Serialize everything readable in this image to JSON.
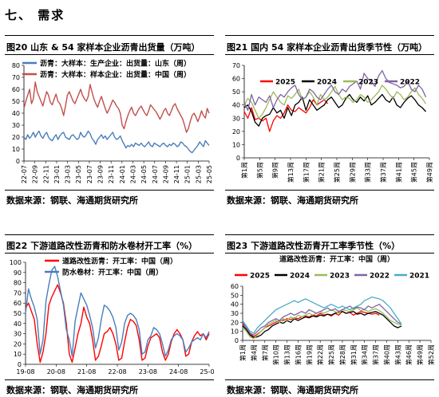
{
  "section_title": "七、  需求",
  "panels": [
    {
      "title": "图20  山东 & 54 家样本企业沥青出货量（万吨）",
      "source": "数据来源：钢联、海通期货研究所"
    },
    {
      "title": "图21  国内 54 家样本企业沥青出货季节性（万吨）",
      "source": "数据来源：钢联、海通期货研究所"
    },
    {
      "title": "图22  下游道路改性沥青和防水卷材开工率（%）",
      "source": "数据来源：钢联、海通期货研究所"
    },
    {
      "title": "图23  下游道路改性沥青开工率季节性（%）",
      "source": "数据来源：钢联、海通期货研究所"
    }
  ],
  "chart_data": [
    {
      "type": "line",
      "legend": [
        "沥青：大样本：生产企业：出货量：山东（周）",
        "沥青：大样本：样本企业：出货量：中国（周）"
      ],
      "colors": [
        "#4a7ebb",
        "#c0504d"
      ],
      "x_tick_labels": [
        "22-07",
        "22-09",
        "22-11",
        "23-01",
        "23-03",
        "23-05",
        "23-07",
        "23-09",
        "23-11",
        "24-01",
        "24-03",
        "24-05",
        "24-07",
        "24-09",
        "24-11",
        "25-01",
        "25-03",
        "25-05"
      ],
      "ylim": [
        0,
        80
      ],
      "y_ticks": [
        0,
        10,
        20,
        30,
        40,
        50,
        60,
        70,
        80
      ],
      "series": [
        {
          "name": "沥青：大样本：生产企业：出货量：山东（周）",
          "values": [
            20,
            18,
            22,
            19,
            21,
            24,
            20,
            23,
            25,
            21,
            19,
            22,
            24,
            20,
            18,
            17,
            20,
            22,
            18,
            21,
            23,
            24,
            20,
            19,
            18,
            21,
            22,
            20,
            18,
            19,
            24,
            21,
            20,
            22,
            25,
            23,
            19,
            17,
            14,
            18,
            20,
            22,
            19,
            21,
            18,
            20,
            22,
            24,
            20,
            18,
            19,
            21,
            17,
            14,
            11,
            13,
            12,
            14,
            12,
            15,
            14,
            13,
            15,
            13,
            12,
            14,
            16,
            13,
            12,
            15,
            14,
            13,
            12,
            14,
            15,
            13,
            12,
            14,
            13,
            15,
            14,
            12,
            13,
            16,
            15,
            13,
            12,
            10,
            8,
            7,
            9,
            11,
            13,
            16,
            14,
            12,
            17,
            15,
            13
          ]
        },
        {
          "name": "沥青：大样本：样本企业：出货量：中国（周）",
          "values": [
            44,
            50,
            55,
            60,
            48,
            52,
            66,
            58,
            54,
            50,
            46,
            52,
            58,
            55,
            49,
            47,
            52,
            56,
            50,
            48,
            44,
            38,
            46,
            55,
            58,
            54,
            50,
            48,
            52,
            56,
            60,
            55,
            52,
            50,
            54,
            64,
            58,
            52,
            48,
            45,
            50,
            54,
            49,
            44,
            40,
            43,
            47,
            51,
            49,
            46,
            44,
            40,
            30,
            27,
            33,
            38,
            42,
            45,
            40,
            38,
            41,
            44,
            46,
            43,
            40,
            38,
            42,
            47,
            45,
            43,
            41,
            38,
            35,
            38,
            42,
            44,
            40,
            38,
            42,
            46,
            48,
            44,
            41,
            38,
            35,
            30,
            24,
            27,
            33,
            38,
            40,
            37,
            33,
            37,
            42,
            38,
            36,
            44,
            40
          ]
        }
      ]
    },
    {
      "type": "line",
      "series_names": [
        "2025",
        "2024",
        "2023",
        "2022"
      ],
      "colors": [
        "#ff0000",
        "#000000",
        "#9bbb59",
        "#8064a2"
      ],
      "ylim": [
        0,
        70
      ],
      "y_ticks": [
        0,
        10,
        20,
        30,
        40,
        50,
        60,
        70
      ],
      "x_tick_labels": [
        "第1周",
        "第5周",
        "第9周",
        "第13周",
        "第17周",
        "第21周",
        "第25周",
        "第29周",
        "第33周",
        "第37周",
        "第41周",
        "第45周",
        "第49周"
      ],
      "series": [
        {
          "name": "2025",
          "values": [
            35,
            30,
            38,
            29,
            30,
            28,
            30,
            20,
            28,
            32,
            30,
            34,
            40,
            36,
            35,
            38,
            36,
            34,
            38,
            44,
            40,
            42,
            44,
            41
          ]
        },
        {
          "name": "2024",
          "values": [
            38,
            40,
            35,
            27,
            24,
            30,
            32,
            33,
            38,
            34,
            36,
            30,
            38,
            32,
            40,
            42,
            46,
            36,
            44,
            40,
            36,
            38,
            40,
            44,
            46,
            42,
            38,
            40,
            45,
            48,
            44,
            42,
            46,
            43,
            47,
            40,
            42,
            45,
            48,
            44,
            42,
            46,
            40,
            38,
            42,
            45,
            47,
            44,
            40,
            38,
            35
          ]
        },
        {
          "name": "2023",
          "values": [
            40,
            45,
            42,
            36,
            30,
            33,
            38,
            44,
            50,
            46,
            42,
            40,
            47,
            45,
            48,
            52,
            44,
            46,
            50,
            46,
            40,
            48,
            44,
            46,
            50,
            54,
            48,
            44,
            46,
            45,
            42,
            44,
            48,
            46,
            42,
            44,
            47,
            50,
            55,
            52,
            48,
            45,
            50,
            48,
            44,
            46,
            50,
            53,
            48,
            45,
            41
          ]
        },
        {
          "name": "2022",
          "values": [
            42,
            36,
            48,
            40,
            46,
            44,
            42,
            47,
            38,
            44,
            48,
            46,
            50,
            53,
            55,
            48,
            44,
            46,
            52,
            50,
            46,
            44,
            48,
            52,
            55,
            50,
            48,
            52,
            50,
            54,
            56,
            58,
            52,
            64,
            60,
            58,
            54,
            62,
            66,
            60,
            57,
            56,
            55,
            53,
            54,
            58,
            52,
            50,
            55,
            52,
            46
          ]
        }
      ]
    },
    {
      "type": "line",
      "legend": [
        "道路改性沥青：开工率：中国（周）",
        "防水卷材：开工率：中国（周）"
      ],
      "colors": [
        "#ff0000",
        "#4a7ebb"
      ],
      "x_tick_labels": [
        "19-08",
        "20-08",
        "21-08",
        "22-08",
        "23-08",
        "24-08",
        "25-08"
      ],
      "ylim": [
        0,
        100
      ],
      "y_ticks": [
        0,
        10,
        20,
        30,
        40,
        50,
        60,
        70,
        80,
        90,
        100
      ],
      "series": [
        {
          "name": "道路改性沥青：开工率：中国（周）",
          "values": [
            55,
            60,
            52,
            44,
            20,
            2,
            12,
            30,
            58,
            66,
            72,
            78,
            70,
            60,
            40,
            10,
            2,
            16,
            30,
            40,
            56,
            46,
            40,
            24,
            4,
            8,
            18,
            30,
            32,
            36,
            30,
            20,
            4,
            6,
            22,
            36,
            44,
            42,
            38,
            24,
            4,
            6,
            18,
            26,
            28,
            30,
            26,
            12,
            4,
            10,
            22,
            30,
            34,
            30,
            24,
            8,
            10,
            22,
            28,
            32,
            28,
            30,
            24,
            30
          ]
        },
        {
          "name": "防水卷材：开工率：中国（周）",
          "values": [
            50,
            74,
            64,
            56,
            44,
            10,
            24,
            62,
            78,
            92,
            96,
            86,
            72,
            58,
            34,
            24,
            8,
            42,
            56,
            70,
            64,
            58,
            48,
            36,
            16,
            26,
            44,
            58,
            56,
            52,
            46,
            36,
            14,
            22,
            40,
            48,
            50,
            48,
            44,
            34,
            10,
            12,
            24,
            28,
            36,
            34,
            30,
            20,
            8,
            14,
            24,
            28,
            30,
            28,
            24,
            12,
            16,
            22,
            24,
            26,
            24,
            30,
            26,
            32
          ]
        }
      ]
    },
    {
      "type": "line",
      "header": "道路改性沥青：开工率：中国（周）",
      "series_names": [
        "2025",
        "2024",
        "2023",
        "2022",
        "2021"
      ],
      "colors": [
        "#ff0000",
        "#000000",
        "#9bbb59",
        "#8064a2",
        "#4bacc6"
      ],
      "ylim": [
        0,
        60
      ],
      "y_ticks": [
        0,
        10,
        20,
        30,
        40,
        50,
        60
      ],
      "x_tick_labels": [
        "第1周",
        "第4周",
        "第7周",
        "第10周",
        "第13周",
        "第16周",
        "第19周",
        "第22周",
        "第25周",
        "第28周",
        "第31周",
        "第34周",
        "第37周",
        "第40周",
        "第43周",
        "第46周",
        "第49周",
        "第52周"
      ],
      "series": [
        {
          "name": "2025",
          "values": [
            18,
            14,
            8,
            4,
            7,
            10,
            14,
            16,
            18,
            20,
            22,
            22,
            24,
            23,
            25,
            24,
            26,
            27,
            26,
            28,
            27,
            30,
            28,
            29,
            27,
            30,
            28,
            32,
            30,
            31,
            28,
            30,
            32,
            31,
            30,
            29,
            30,
            28
          ]
        },
        {
          "name": "2024",
          "values": [
            16,
            12,
            6,
            3,
            4,
            6,
            10,
            12,
            16,
            18,
            20,
            19,
            22,
            20,
            24,
            22,
            24,
            26,
            25,
            27,
            26,
            28,
            27,
            29,
            28,
            30,
            31,
            32,
            30,
            31,
            32,
            29,
            30,
            28,
            30,
            31,
            32,
            30,
            28,
            24,
            20,
            16,
            14,
            16
          ]
        },
        {
          "name": "2023",
          "values": [
            14,
            10,
            4,
            2,
            6,
            10,
            14,
            18,
            20,
            22,
            20,
            24,
            22,
            26,
            24,
            28,
            26,
            28,
            30,
            28,
            30,
            32,
            30,
            32,
            34,
            32,
            30,
            34,
            33,
            32,
            34,
            36,
            33,
            34,
            32,
            34,
            35,
            33,
            30,
            26,
            22,
            20,
            18,
            17
          ]
        },
        {
          "name": "2022",
          "values": [
            20,
            14,
            8,
            6,
            10,
            14,
            16,
            20,
            22,
            24,
            22,
            26,
            28,
            30,
            28,
            30,
            32,
            30,
            34,
            32,
            30,
            32,
            34,
            36,
            33,
            35,
            32,
            34,
            36,
            38,
            35,
            37,
            36,
            34,
            38,
            36,
            38,
            40,
            36,
            32,
            28,
            24,
            20,
            18
          ]
        },
        {
          "name": "2021",
          "values": [
            22,
            16,
            10,
            8,
            14,
            18,
            22,
            26,
            30,
            34,
            36,
            38,
            40,
            42,
            44,
            42,
            44,
            46,
            44,
            42,
            40,
            38,
            36,
            38,
            40,
            38,
            36,
            38,
            36,
            34,
            36,
            38,
            40,
            44,
            46,
            48,
            47,
            46,
            44,
            40,
            36,
            30,
            24,
            18
          ]
        }
      ]
    }
  ]
}
